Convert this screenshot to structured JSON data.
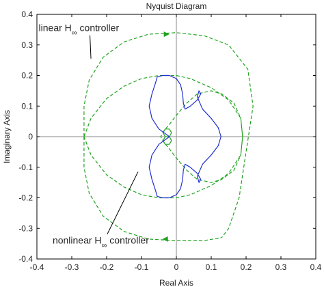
{
  "chart_data": {
    "type": "line",
    "title": "Nyquist Diagram",
    "xlabel": "Real Axis",
    "ylabel": "Imaginary Axis",
    "xlim": [
      -0.4,
      0.4
    ],
    "ylim": [
      -0.4,
      0.4
    ],
    "xticks": [
      -0.4,
      -0.3,
      -0.2,
      -0.1,
      0,
      0.1,
      0.2,
      0.3,
      0.4
    ],
    "xtick_labels": [
      "-0.4",
      "-0.3",
      "-0.2",
      "-0.1",
      "0",
      "0.1",
      "0.2",
      "0.3",
      "0.4"
    ],
    "yticks": [
      -0.4,
      -0.3,
      -0.2,
      -0.1,
      0,
      0.1,
      0.2,
      0.3,
      0.4
    ],
    "ytick_labels": [
      "-0.4",
      "-0.3",
      "-0.2",
      "-0.1",
      "0",
      "0.1",
      "0.2",
      "0.3",
      "0.4"
    ],
    "grid": false,
    "legend": "none",
    "series": [
      {
        "color": "#1fa31f",
        "style": "dashed",
        "x": [
          -0.265,
          -0.245,
          -0.2,
          -0.15,
          -0.1,
          -0.05,
          0.0,
          0.04,
          0.1,
          0.15,
          0.185,
          0.19,
          0.185,
          0.165,
          0.13,
          0.1,
          0.06,
          0.03,
          0.0,
          -0.02,
          -0.035,
          -0.045,
          -0.035,
          -0.02,
          0.0,
          0.03,
          0.06,
          0.1,
          0.13,
          0.165,
          0.185,
          0.19,
          0.185,
          0.15,
          0.1,
          0.04,
          0.0,
          -0.05,
          -0.1,
          -0.15,
          -0.2,
          -0.245,
          -0.265
        ],
        "y": [
          0.0,
          0.06,
          0.125,
          0.165,
          0.19,
          0.2,
          0.2,
          0.19,
          0.16,
          0.12,
          0.06,
          0.0,
          -0.06,
          -0.11,
          -0.14,
          -0.15,
          -0.14,
          -0.11,
          -0.07,
          -0.04,
          -0.02,
          0.0,
          0.02,
          0.04,
          0.07,
          0.11,
          0.14,
          0.15,
          0.14,
          0.11,
          0.06,
          0.0,
          -0.06,
          -0.12,
          -0.16,
          -0.19,
          -0.2,
          -0.2,
          -0.19,
          -0.165,
          -0.125,
          -0.06,
          0.0
        ]
      },
      {
        "color": "#1fa31f",
        "style": "dashed",
        "x": [
          -0.265,
          -0.265,
          -0.25,
          -0.21,
          -0.15,
          -0.08,
          0.0,
          0.08,
          0.15,
          0.205,
          0.22,
          0.2,
          0.18,
          0.15,
          0.13
        ],
        "y": [
          0.0,
          0.1,
          0.185,
          0.26,
          0.31,
          0.335,
          0.34,
          0.33,
          0.3,
          0.22,
          0.1,
          -0.05,
          -0.2,
          -0.3,
          -0.33
        ]
      },
      {
        "color": "#1fa31f",
        "style": "dashed",
        "x": [
          -0.265,
          -0.265,
          -0.25,
          -0.21,
          -0.15,
          -0.08,
          0.0,
          0.08,
          0.13
        ],
        "y": [
          0.0,
          -0.1,
          -0.185,
          -0.26,
          -0.31,
          -0.335,
          -0.34,
          -0.34,
          -0.33
        ]
      },
      {
        "color": "#1fa31f",
        "style": "solid",
        "x": [
          -0.02,
          -0.014,
          -0.02,
          -0.032,
          -0.038,
          -0.032,
          -0.02,
          -0.014,
          -0.02,
          -0.032,
          -0.038,
          -0.032,
          -0.02
        ],
        "y": [
          0.0,
          0.013,
          0.025,
          0.025,
          0.013,
          0.0,
          0.0,
          -0.013,
          -0.025,
          -0.025,
          -0.013,
          0.0,
          0.0
        ]
      },
      {
        "color": "#1f2fd0",
        "style": "solid",
        "x": [
          -0.02,
          -0.05,
          -0.07,
          -0.078,
          -0.07,
          -0.06,
          -0.055,
          -0.04,
          -0.02,
          0.0,
          0.012,
          0.018,
          0.02,
          0.025,
          0.04,
          0.06,
          0.07,
          0.065,
          0.06,
          0.075,
          0.1,
          0.12,
          0.128,
          0.12,
          0.1,
          0.075,
          0.06,
          0.065,
          0.07,
          0.06,
          0.04,
          0.025,
          0.02,
          0.018,
          0.012,
          0.0,
          -0.02,
          -0.04,
          -0.055,
          -0.06,
          -0.07,
          -0.078,
          -0.07,
          -0.05,
          -0.02
        ],
        "y": [
          0.0,
          0.025,
          0.06,
          0.1,
          0.14,
          0.175,
          0.195,
          0.2,
          0.2,
          0.19,
          0.17,
          0.14,
          0.11,
          0.09,
          0.1,
          0.12,
          0.14,
          0.15,
          0.13,
          0.09,
          0.06,
          0.03,
          0.0,
          -0.03,
          -0.06,
          -0.09,
          -0.13,
          -0.15,
          -0.14,
          -0.12,
          -0.1,
          -0.09,
          -0.11,
          -0.14,
          -0.17,
          -0.19,
          -0.2,
          -0.2,
          -0.195,
          -0.175,
          -0.14,
          -0.1,
          -0.06,
          -0.025,
          0.0
        ]
      }
    ],
    "arrows": [
      {
        "color": "#1fa31f",
        "x": -0.03,
        "y": 0.335,
        "dir": "right"
      },
      {
        "color": "#1fa31f",
        "x": -0.03,
        "y": -0.335,
        "dir": "left"
      }
    ],
    "annotations": [
      {
        "text": "linear H",
        "sub": "∞",
        "suffix": " controller",
        "x": -0.395,
        "y": 0.345,
        "tx": -0.245,
        "ty": 0.255
      },
      {
        "text": "nonlinear H",
        "sub": "∞",
        "suffix": " controller",
        "x": -0.355,
        "y": -0.35,
        "tx": -0.11,
        "ty": -0.115
      }
    ]
  }
}
